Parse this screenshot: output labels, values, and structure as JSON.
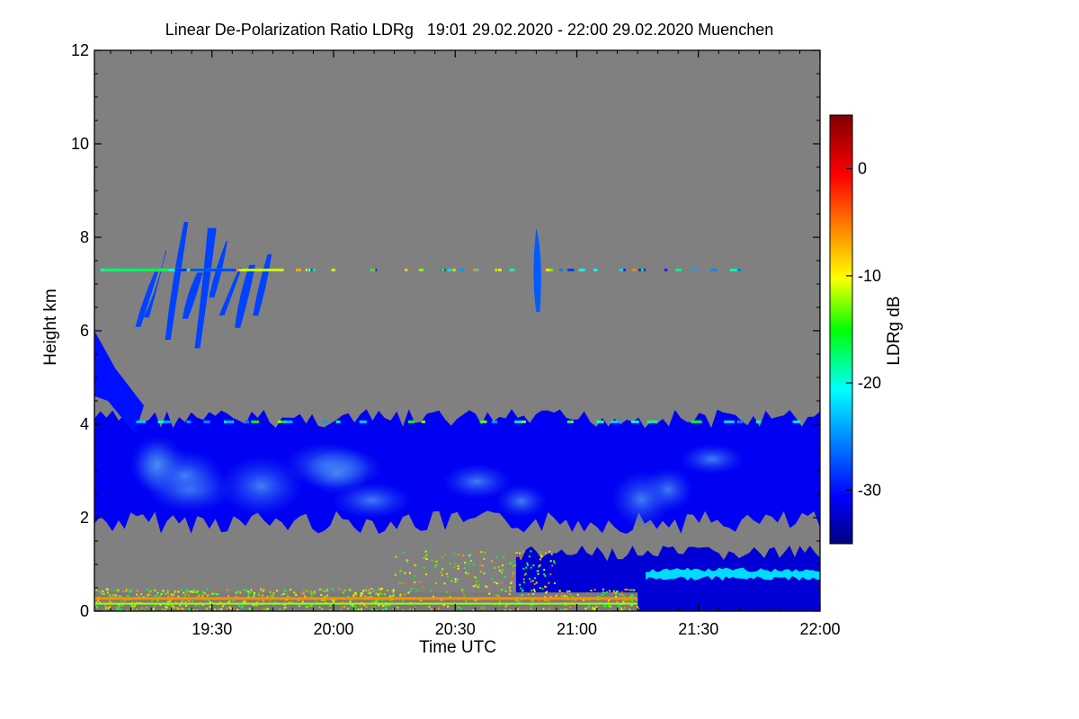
{
  "chart_data": {
    "type": "heatmap",
    "title": "Linear De-Polarization Ratio LDRg   19:01 29.02.2020 - 22:00 29.02.2020 Muenchen",
    "xlabel": "Time UTC",
    "ylabel": "Height km",
    "colorbar_label": "LDRg dB",
    "xlim_min": [
      1141,
      1320
    ],
    "ylim_km": [
      0,
      12
    ],
    "x_ticks": [
      {
        "min": 1170,
        "label": "19:30"
      },
      {
        "min": 1200,
        "label": "20:00"
      },
      {
        "min": 1230,
        "label": "20:30"
      },
      {
        "min": 1260,
        "label": "21:00"
      },
      {
        "min": 1290,
        "label": "21:30"
      },
      {
        "min": 1320,
        "label": "22:00"
      }
    ],
    "y_ticks": [
      {
        "km": 0,
        "label": "0"
      },
      {
        "km": 2,
        "label": "2"
      },
      {
        "km": 4,
        "label": "4"
      },
      {
        "km": 6,
        "label": "6"
      },
      {
        "km": 8,
        "label": "8"
      },
      {
        "km": 10,
        "label": "10"
      },
      {
        "km": 12,
        "label": "12"
      }
    ],
    "colorbar_range_db": [
      -35,
      5
    ],
    "colorbar_ticks": [
      {
        "db": 0,
        "label": "0"
      },
      {
        "db": -10,
        "label": "-10"
      },
      {
        "db": -20,
        "label": "-20"
      },
      {
        "db": -30,
        "label": "-30"
      }
    ],
    "no_data_color": "#808080",
    "features": [
      {
        "name": "main-cloud-layer",
        "start_min": 1141,
        "end_min": 1320,
        "base_km": 1.9,
        "top_km": 4.2,
        "ldr_db": -31
      },
      {
        "name": "low-cloud-layer",
        "start_min": 1245,
        "end_min": 1320,
        "base_km": 0.0,
        "top_km": 1.3,
        "ldr_db": -32
      },
      {
        "name": "melting-layer-band",
        "start_min": 1277,
        "end_min": 1320,
        "base_km": 0.7,
        "top_km": 0.9,
        "ldr_db": -22
      },
      {
        "name": "surface-aerosol-layer",
        "start_min": 1141,
        "end_min": 1275,
        "base_km": 0.0,
        "top_km": 0.4,
        "ldr_db": -8
      },
      {
        "name": "high-cirrus-fallstreaks",
        "start_min": 1155,
        "end_min": 1185,
        "base_km": 5.6,
        "top_km": 8.4,
        "ldr_db": -28
      },
      {
        "name": "cirrus-plume",
        "start_min": 1250,
        "end_min": 1252,
        "base_km": 6.4,
        "top_km": 8.2,
        "ldr_db": -27
      },
      {
        "name": "artifact-line-7.3km",
        "start_min": 1141,
        "end_min": 1300,
        "base_km": 7.25,
        "top_km": 7.35,
        "ldr_db": -12
      }
    ]
  }
}
